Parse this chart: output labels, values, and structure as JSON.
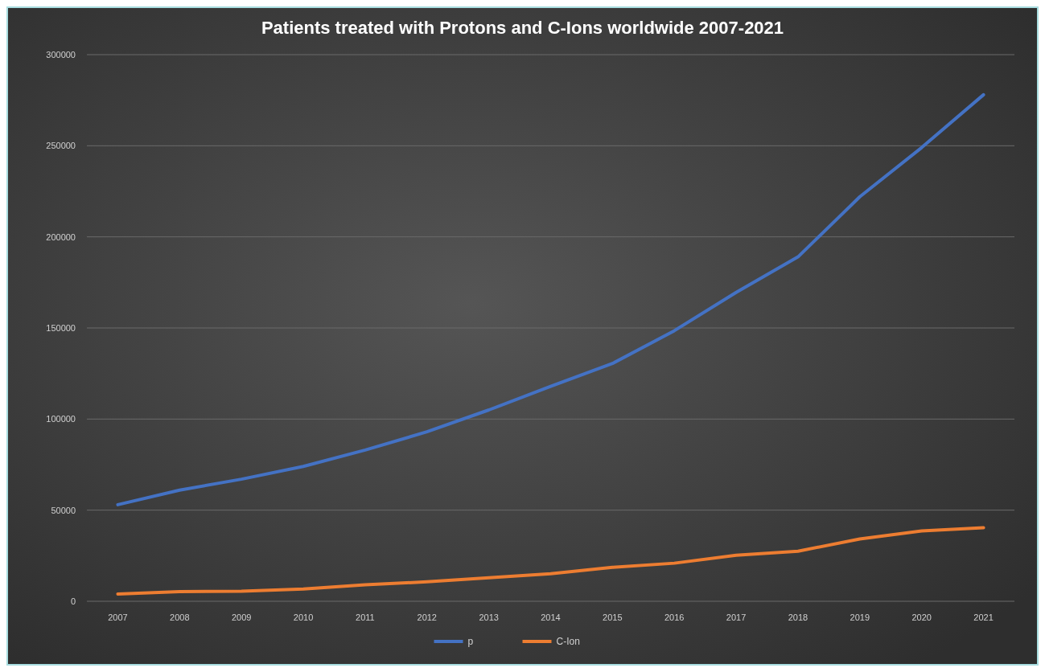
{
  "chart_data": {
    "type": "line",
    "title": "Patients treated with Protons and C-Ions worldwide 2007-2021",
    "categories": [
      "2007",
      "2008",
      "2009",
      "2010",
      "2011",
      "2012",
      "2013",
      "2014",
      "2015",
      "2016",
      "2017",
      "2018",
      "2019",
      "2020",
      "2021"
    ],
    "series": [
      {
        "name": "p",
        "color": "#4472c4",
        "values": [
          53000,
          61000,
          67000,
          74000,
          83000,
          93000,
          105000,
          118000,
          130500,
          148500,
          169500,
          189000,
          222000,
          249000,
          278000
        ]
      },
      {
        "name": "C-Ion",
        "color": "#ed7d31",
        "values": [
          4000,
          5300,
          5500,
          6700,
          9000,
          10700,
          12900,
          15100,
          18600,
          20900,
          25300,
          27500,
          34200,
          38600,
          40400
        ]
      }
    ],
    "ylim": [
      0,
      300000
    ],
    "yticks": [
      0,
      50000,
      100000,
      150000,
      200000,
      250000,
      300000
    ],
    "grid": "y",
    "legend": "bottom",
    "marker": "none",
    "line_style": "solid"
  }
}
